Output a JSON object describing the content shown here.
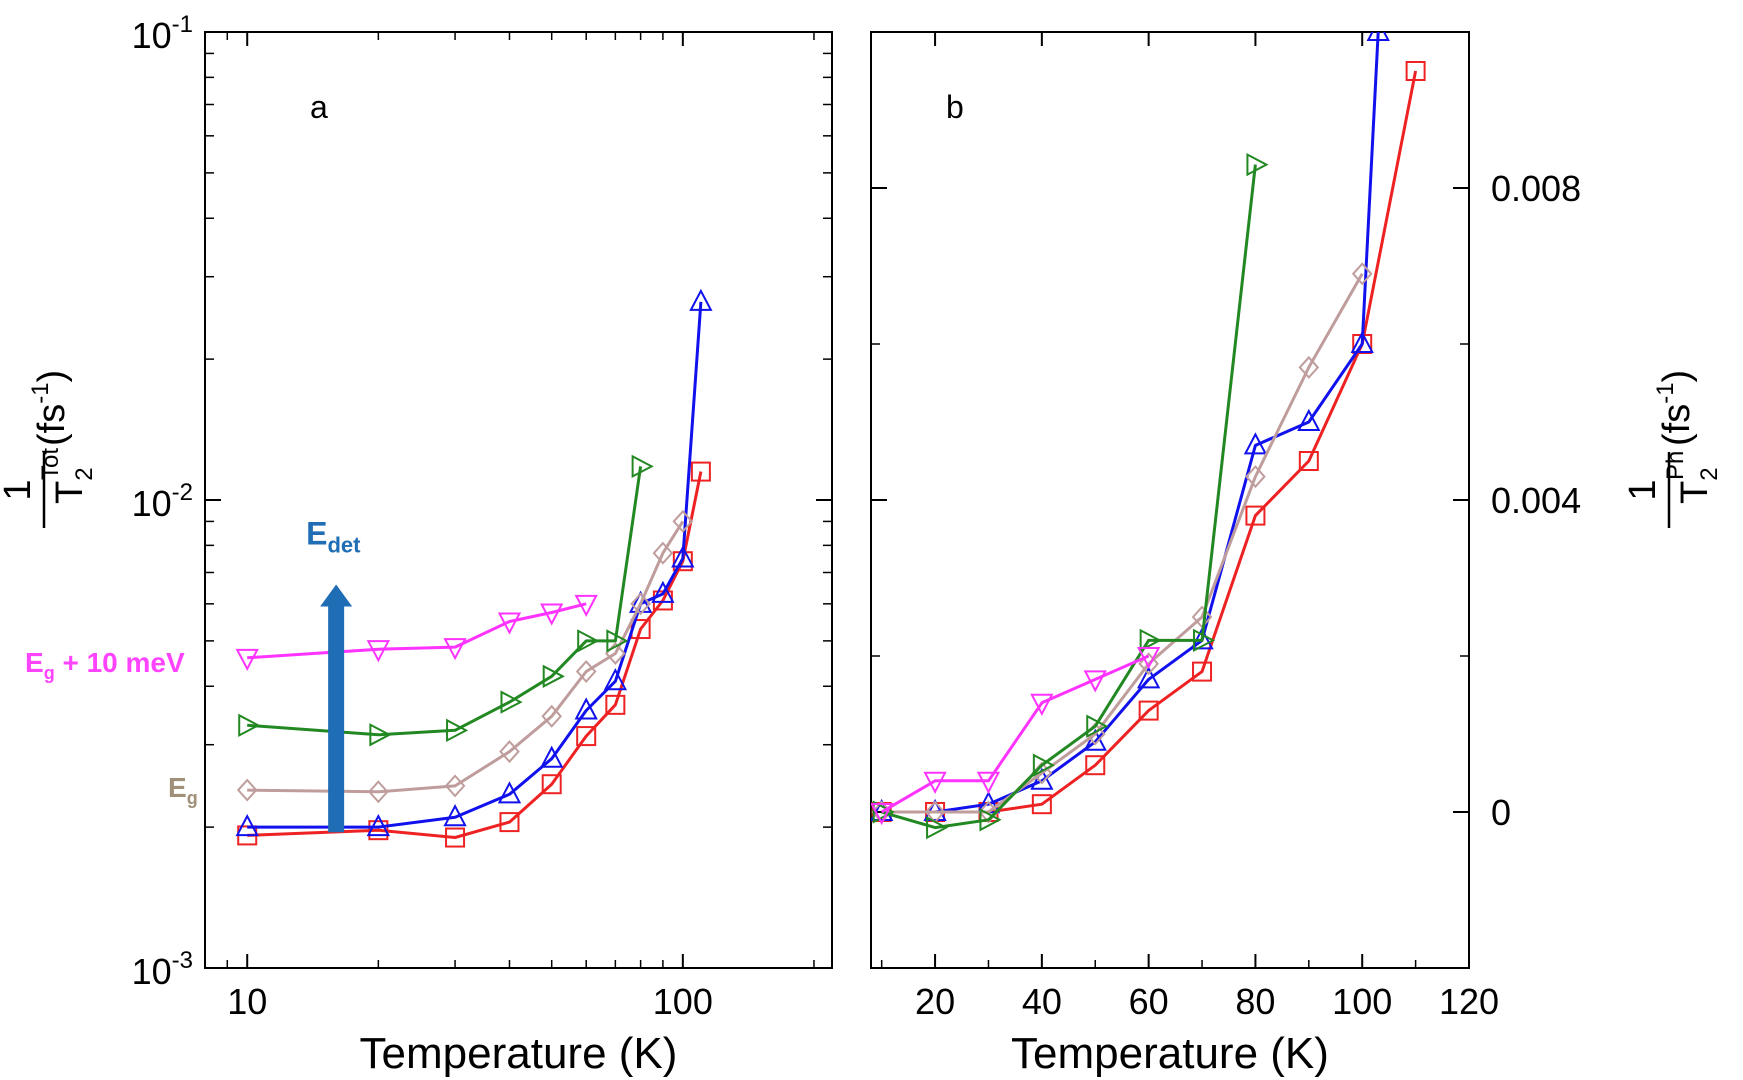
{
  "chart_data": [
    {
      "panel_label": "a",
      "type": "line",
      "xscale": "log",
      "yscale": "log",
      "xlim": [
        8,
        220
      ],
      "ylim": [
        0.001,
        0.1
      ],
      "xlabel": "Temperature (K)",
      "ylabel": {
        "numerator": "1",
        "base": "T",
        "sub": "2",
        "sup": "Tot",
        "unit_open": "(fs",
        "unit_sup": "-1",
        "unit_close": ")"
      },
      "x_ticks": [
        {
          "value": 10,
          "label": "10"
        },
        {
          "value": 100,
          "label": "100"
        }
      ],
      "y_ticks": [
        {
          "value": 0.001,
          "base": "10",
          "exp": "-3"
        },
        {
          "value": 0.01,
          "base": "10",
          "exp": "-2"
        },
        {
          "value": 0.1,
          "base": "10",
          "exp": "-1"
        }
      ],
      "grid": false,
      "series": [
        {
          "marker": "square",
          "color": "#ee2222",
          "x": [
            10,
            20,
            30,
            40,
            50,
            60,
            70,
            80,
            90,
            100,
            110
          ],
          "y": [
            0.00192,
            0.00197,
            0.0019,
            0.00205,
            0.00247,
            0.00313,
            0.00365,
            0.0053,
            0.0061,
            0.0074,
            0.0115
          ]
        },
        {
          "marker": "triangle-up",
          "color": "#1111ee",
          "x": [
            10,
            20,
            30,
            40,
            50,
            60,
            70,
            80,
            90,
            100,
            110
          ],
          "y": [
            0.002,
            0.002,
            0.0021,
            0.00235,
            0.0028,
            0.00355,
            0.0041,
            0.006,
            0.0063,
            0.0075,
            0.0265
          ]
        },
        {
          "marker": "diamond",
          "color": "#c09d9d",
          "x": [
            10,
            20,
            30,
            40,
            50,
            60,
            70,
            80,
            90,
            100
          ],
          "y": [
            0.0024,
            0.00238,
            0.00245,
            0.0029,
            0.00345,
            0.0043,
            0.0047,
            0.006,
            0.0077,
            0.009
          ]
        },
        {
          "marker": "triangle-right",
          "color": "#228822",
          "x": [
            10,
            20,
            30,
            40,
            50,
            60,
            70,
            80
          ],
          "y": [
            0.0033,
            0.00315,
            0.00322,
            0.0037,
            0.0042,
            0.005,
            0.005,
            0.0118
          ]
        },
        {
          "marker": "triangle-down",
          "color": "#ff33ff",
          "x": [
            10,
            20,
            30,
            40,
            50,
            60
          ],
          "y": [
            0.0046,
            0.0048,
            0.00485,
            0.0055,
            0.00575,
            0.006
          ]
        }
      ],
      "annotations": {
        "arrow": {
          "x": 16,
          "y_from": 0.00195,
          "y_to": 0.0066,
          "color": "#1f6db5",
          "label_base": "E",
          "label_sub": "det",
          "label_color": "#1f6db5"
        },
        "top_label": {
          "base": "E",
          "sub": "g",
          "text": " + 10 meV",
          "color": "#ff44ff"
        },
        "bottom_label": {
          "base": "E",
          "sub": "g",
          "color": "#a0907a"
        }
      }
    },
    {
      "panel_label": "b",
      "type": "line",
      "xscale": "linear",
      "yscale": "linear",
      "xlim": [
        8,
        120
      ],
      "ylim": [
        -0.002,
        0.01
      ],
      "xlabel": "Temperature (K)",
      "ylabel": {
        "numerator": "1",
        "base": "T",
        "sub": "2",
        "sup": "Ph",
        "unit_open": "(fs",
        "unit_sup": "-1",
        "unit_close": ")"
      },
      "x_ticks": [
        {
          "value": 20,
          "label": "20"
        },
        {
          "value": 40,
          "label": "40"
        },
        {
          "value": 60,
          "label": "60"
        },
        {
          "value": 80,
          "label": "80"
        },
        {
          "value": 100,
          "label": "100"
        },
        {
          "value": 120,
          "label": "120"
        }
      ],
      "y_ticks": [
        {
          "value": 0,
          "label": "0"
        },
        {
          "value": 0.004,
          "label": "0.004"
        },
        {
          "value": 0.008,
          "label": "0.008"
        }
      ],
      "grid": false,
      "series": [
        {
          "marker": "square",
          "color": "#ee2222",
          "x": [
            10,
            20,
            30,
            40,
            50,
            60,
            70,
            80,
            90,
            100,
            110
          ],
          "y": [
            0.0,
            0.0,
            0.0,
            0.0001,
            0.0006,
            0.0013,
            0.0018,
            0.0038,
            0.0045,
            0.006,
            0.0095
          ]
        },
        {
          "marker": "triangle-up",
          "color": "#1111ee",
          "x": [
            10,
            20,
            30,
            40,
            50,
            60,
            70,
            80,
            90,
            100,
            103
          ],
          "y": [
            0.0,
            0.0,
            0.0001,
            0.0004,
            0.0009,
            0.0017,
            0.0022,
            0.0047,
            0.005,
            0.006,
            0.01
          ]
        },
        {
          "marker": "diamond",
          "color": "#c09d9d",
          "x": [
            10,
            20,
            30,
            40,
            50,
            60,
            70,
            80,
            90,
            100
          ],
          "y": [
            0.0,
            0.0,
            0.0,
            0.0005,
            0.001,
            0.0019,
            0.0025,
            0.0043,
            0.0057,
            0.0069
          ]
        },
        {
          "marker": "triangle-right",
          "color": "#228822",
          "x": [
            10,
            20,
            30,
            40,
            50,
            60,
            70,
            80
          ],
          "y": [
            0.0,
            -0.0002,
            -0.0001,
            0.0006,
            0.0011,
            0.0022,
            0.0022,
            0.0083
          ]
        },
        {
          "marker": "triangle-down",
          "color": "#ff33ff",
          "x": [
            10,
            20,
            30,
            40,
            50,
            60
          ],
          "y": [
            0.0,
            0.0004,
            0.0004,
            0.0014,
            0.0017,
            0.002
          ]
        }
      ]
    }
  ]
}
